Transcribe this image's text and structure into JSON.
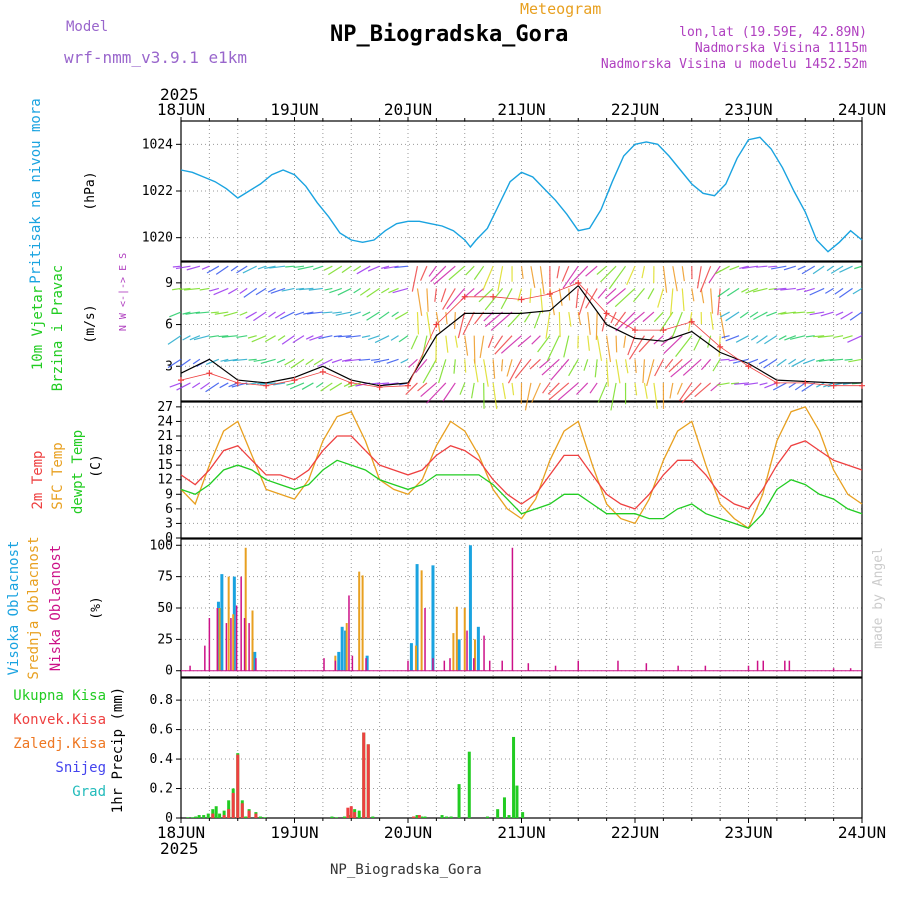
{
  "header": {
    "model_label": "Model",
    "model_name": "wrf-nmm_v3.9.1 e1km",
    "app_title": "Meteogram",
    "station": "NP_Biogradska_Gora",
    "coords": "lon,lat (19.59E, 42.89N)",
    "elevation": "Nadmorska Visina 1115m",
    "model_elevation": "Nadmorska Visina u modelu 1452.52m",
    "footer_station": "NP_Biogradska_Gora",
    "credit": "made by Angel"
  },
  "colors": {
    "pressure": "#1aa3e0",
    "temp2m": "#ee4040",
    "sfc": "#e8a020",
    "dewpt": "#22cc22",
    "high_cloud": "#1aa3e0",
    "mid_cloud": "#e8a020",
    "low_cloud": "#cc1188",
    "total_precip": "#22cc22",
    "conv_precip": "#ee4040",
    "strat_precip": "#ee7722",
    "snow": "#4444ee",
    "graupel": "#22bbbb",
    "wind_speed": "#000000",
    "wind_gust": "#ee4040",
    "ylabel_pressure": "#1aa3e0",
    "model_label": "#9966cc",
    "app_title": "#e8a020"
  },
  "chart_data": [
    {
      "type": "line",
      "ylabel": "Pritisak na nivou mora",
      "unit": "(hPa)",
      "ylim": [
        1019,
        1025
      ],
      "yticks": [
        1020,
        1022,
        1024
      ],
      "x_days": [
        0,
        0.1,
        0.2,
        0.3,
        0.4,
        0.5,
        0.6,
        0.7,
        0.8,
        0.9,
        1.0,
        1.1,
        1.2,
        1.3,
        1.4,
        1.5,
        1.6,
        1.7,
        1.8,
        1.9,
        2.0,
        2.1,
        2.2,
        2.3,
        2.4,
        2.5,
        2.55,
        2.6,
        2.7,
        2.8,
        2.9,
        3.0,
        3.1,
        3.2,
        3.3,
        3.4,
        3.5,
        3.6,
        3.7,
        3.8,
        3.9,
        4.0,
        4.1,
        4.2,
        4.3,
        4.4,
        4.5,
        4.6,
        4.7,
        4.8,
        4.9,
        5.0,
        5.1,
        5.2,
        5.3,
        5.4,
        5.5,
        5.6,
        5.7,
        5.8,
        5.9,
        6.0
      ],
      "series": [
        {
          "values": [
            1022.9,
            1022.8,
            1022.6,
            1022.4,
            1022.1,
            1021.7,
            1022.0,
            1022.3,
            1022.7,
            1022.9,
            1022.7,
            1022.2,
            1021.5,
            1020.9,
            1020.2,
            1019.9,
            1019.8,
            1019.9,
            1020.3,
            1020.6,
            1020.7,
            1020.7,
            1020.6,
            1020.5,
            1020.3,
            1019.9,
            1019.6,
            1019.9,
            1020.4,
            1021.4,
            1022.4,
            1022.8,
            1022.6,
            1022.1,
            1021.6,
            1021.0,
            1020.3,
            1020.4,
            1021.2,
            1022.4,
            1023.5,
            1024.0,
            1024.1,
            1024.0,
            1023.5,
            1022.9,
            1022.3,
            1021.9,
            1021.8,
            1022.3,
            1023.4,
            1024.2,
            1024.3,
            1023.8,
            1023.0,
            1022.0,
            1021.1,
            1019.9,
            1019.4,
            1019.8,
            1020.3,
            1019.9
          ]
        }
      ]
    },
    {
      "type": "line",
      "ylabel": "10m Vjetar Brzina i Pravac",
      "unit": "(m/s)",
      "compass": "N  W <-|-> E  S",
      "ylim": [
        0.5,
        10.5
      ],
      "yticks": [
        3,
        6,
        9
      ],
      "x_days": [
        0,
        0.25,
        0.5,
        0.75,
        1.0,
        1.25,
        1.5,
        1.75,
        2.0,
        2.25,
        2.5,
        2.75,
        3.0,
        3.25,
        3.5,
        3.75,
        4.0,
        4.25,
        4.5,
        4.75,
        5.0,
        5.25,
        5.5,
        5.75,
        6.0
      ],
      "series": [
        {
          "name": "wind speed",
          "values": [
            2.5,
            3.5,
            2.0,
            1.8,
            2.2,
            3.0,
            2.0,
            1.6,
            1.8,
            5.2,
            6.8,
            6.8,
            6.8,
            7.0,
            8.8,
            6.0,
            5.0,
            4.8,
            5.5,
            4.0,
            3.2,
            2.0,
            1.9,
            1.8,
            1.8
          ]
        },
        {
          "name": "gust",
          "values": [
            2.0,
            2.5,
            1.8,
            1.6,
            2.0,
            2.6,
            1.8,
            1.5,
            1.6,
            6.0,
            8.0,
            8.0,
            7.8,
            8.2,
            9.0,
            6.8,
            5.6,
            5.6,
            6.2,
            4.4,
            3.0,
            1.8,
            1.8,
            1.6,
            1.6
          ]
        }
      ]
    },
    {
      "type": "line",
      "ylabels": [
        "2m Temp",
        "SFC Temp",
        "dewpt Temp"
      ],
      "unit": "(C)",
      "ylim": [
        0,
        28
      ],
      "yticks": [
        0,
        3,
        6,
        9,
        12,
        15,
        18,
        21,
        24,
        27
      ],
      "x_days": [
        0,
        0.125,
        0.25,
        0.375,
        0.5,
        0.625,
        0.75,
        0.875,
        1.0,
        1.125,
        1.25,
        1.375,
        1.5,
        1.625,
        1.75,
        1.875,
        2.0,
        2.125,
        2.25,
        2.375,
        2.5,
        2.625,
        2.75,
        2.875,
        3.0,
        3.125,
        3.25,
        3.375,
        3.5,
        3.625,
        3.75,
        3.875,
        4.0,
        4.125,
        4.25,
        4.375,
        4.5,
        4.625,
        4.75,
        4.875,
        5.0,
        5.125,
        5.25,
        5.375,
        5.5,
        5.625,
        5.75,
        5.875,
        6.0
      ],
      "series": [
        {
          "name": "2m Temp",
          "values": [
            13,
            11,
            14,
            18,
            19,
            16,
            13,
            13,
            12,
            14,
            18,
            21,
            21,
            18,
            15,
            14,
            13,
            14,
            17,
            19,
            18,
            16,
            12,
            9,
            7,
            9,
            13,
            17,
            17,
            13,
            9,
            7,
            6,
            9,
            13,
            16,
            16,
            13,
            9,
            7,
            6,
            10,
            15,
            19,
            20,
            18,
            16,
            15,
            14
          ]
        },
        {
          "name": "SFC Temp",
          "values": [
            10,
            7,
            15,
            22,
            24,
            17,
            10,
            9,
            8,
            12,
            20,
            25,
            26,
            20,
            12,
            10,
            9,
            12,
            19,
            24,
            22,
            17,
            10,
            6,
            4,
            8,
            16,
            22,
            24,
            15,
            7,
            4,
            3,
            8,
            16,
            22,
            24,
            15,
            7,
            4,
            2,
            9,
            20,
            26,
            27,
            22,
            14,
            9,
            7
          ]
        },
        {
          "name": "dewpt Temp",
          "values": [
            10,
            9,
            11,
            14,
            15,
            14,
            12,
            11,
            10,
            11,
            14,
            16,
            15,
            14,
            12,
            11,
            10,
            11,
            13,
            13,
            13,
            13,
            11,
            8,
            5,
            6,
            7,
            9,
            9,
            7,
            5,
            5,
            5,
            4,
            4,
            6,
            7,
            5,
            4,
            3,
            2,
            5,
            10,
            12,
            11,
            9,
            8,
            6,
            5
          ]
        }
      ]
    },
    {
      "type": "bar",
      "ylabels": [
        "Visoka Oblacnost",
        "Srednja Oblacnost",
        "Niska Oblacnost"
      ],
      "unit": "(%)",
      "ylim": [
        -5,
        105
      ],
      "yticks": [
        0,
        25,
        50,
        75,
        100
      ],
      "series": [
        {
          "name": "Visoka Oblacnost",
          "x_days": [
            0.33,
            0.36,
            0.47,
            0.65,
            1.39,
            1.42,
            1.45,
            1.64,
            2.03,
            2.08,
            2.22,
            2.45,
            2.55,
            2.62
          ],
          "values": [
            55,
            77,
            75,
            15,
            15,
            35,
            32,
            12,
            22,
            85,
            84,
            25,
            100,
            35
          ]
        },
        {
          "name": "Srednja Oblacnost",
          "x_days": [
            0.34,
            0.42,
            0.46,
            0.57,
            0.63,
            1.36,
            1.46,
            1.57,
            1.6,
            2.07,
            2.12,
            2.4,
            2.43,
            2.5,
            2.59
          ],
          "values": [
            50,
            75,
            45,
            98,
            48,
            12,
            38,
            79,
            76,
            20,
            80,
            30,
            51,
            50,
            25
          ]
        },
        {
          "name": "Niska Oblacnost",
          "x_days": [
            0.08,
            0.21,
            0.25,
            0.32,
            0.4,
            0.44,
            0.49,
            0.53,
            0.56,
            0.6,
            0.66,
            1.26,
            1.36,
            1.48,
            1.51,
            1.63,
            2.0,
            2.15,
            2.22,
            2.32,
            2.37,
            2.52,
            2.58,
            2.67,
            2.72,
            2.83,
            2.92,
            3.06,
            3.3,
            3.5,
            3.85,
            4.1,
            4.38,
            4.62,
            5.0,
            5.08,
            5.13,
            5.32,
            5.36,
            5.75,
            5.9
          ],
          "values": [
            4,
            20,
            42,
            50,
            38,
            42,
            52,
            75,
            42,
            38,
            10,
            10,
            8,
            60,
            12,
            10,
            8,
            50,
            10,
            8,
            10,
            32,
            10,
            28,
            8,
            8,
            98,
            6,
            4,
            8,
            8,
            6,
            4,
            4,
            4,
            8,
            8,
            8,
            8,
            2,
            2
          ]
        }
      ]
    },
    {
      "type": "bar",
      "ylabels": [
        "Ukupna Kisa",
        "Konvek.Kisa",
        "Zaledj.Kisa",
        "Snijeg",
        "Grad"
      ],
      "ylabel": "1hr Precip (mm)",
      "ylim": [
        0,
        0.95
      ],
      "yticks": [
        0,
        0.2,
        0.4,
        0.6,
        0.8
      ],
      "series": [
        {
          "name": "Ukupna Kisa",
          "x_days": [
            0.06,
            0.1,
            0.13,
            0.16,
            0.2,
            0.24,
            0.28,
            0.31,
            0.34,
            0.38,
            0.42,
            0.46,
            0.5,
            0.54,
            0.57,
            0.6,
            0.66,
            0.7,
            0.74,
            1.33,
            1.37,
            1.44,
            1.49,
            1.53,
            1.57,
            1.61,
            1.65,
            1.69,
            2.05,
            2.08,
            2.12,
            2.15,
            2.3,
            2.34,
            2.38,
            2.45,
            2.54,
            2.7,
            2.79,
            2.85,
            2.89,
            2.93,
            2.96,
            3.01
          ],
          "values": [
            0.005,
            0.005,
            0.01,
            0.02,
            0.02,
            0.03,
            0.06,
            0.08,
            0.03,
            0.05,
            0.12,
            0.2,
            0.44,
            0.12,
            0.01,
            0.06,
            0.04,
            0.01,
            0.005,
            0.01,
            0.005,
            0.01,
            0.02,
            0.06,
            0.05,
            0.58,
            0.5,
            0.01,
            0.01,
            0.02,
            0.01,
            0.01,
            0.02,
            0.01,
            0.01,
            0.23,
            0.45,
            0.01,
            0.06,
            0.14,
            0.02,
            0.55,
            0.22,
            0.04
          ]
        },
        {
          "name": "Konvek.Kisa",
          "x_days": [
            0.28,
            0.38,
            0.42,
            0.46,
            0.5,
            0.54,
            0.6,
            0.66,
            1.47,
            1.5,
            1.53,
            1.61,
            1.65,
            2.05,
            2.1
          ],
          "values": [
            0.03,
            0.02,
            0.06,
            0.17,
            0.43,
            0.1,
            0.05,
            0.03,
            0.07,
            0.08,
            0.04,
            0.58,
            0.5,
            0.01,
            0.02
          ]
        }
      ]
    }
  ],
  "x_axis": {
    "year_label": "2025",
    "day_labels": [
      "18JUN",
      "19JUN",
      "20JUN",
      "21JUN",
      "22JUN",
      "23JUN",
      "24JUN"
    ]
  }
}
